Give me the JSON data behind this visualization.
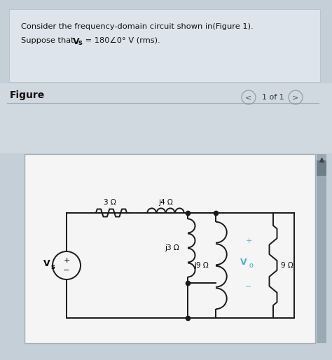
{
  "bg_color": "#c5cfd8",
  "panel_bg": "#d4dde5",
  "text_box_bg": "#dde4eb",
  "circuit_bg": "#f5f5f5",
  "figure_section_bg": "#d0d8e0",
  "title_line1": "Consider the frequency-domain circuit shown in(Figure 1).",
  "title_line2_pre": "Suppose that ",
  "title_Vs_bold": "V",
  "title_Vs_sub": "s",
  "title_line2_post": " = 180∠0° V (rms).",
  "figure_label": "Figure",
  "page_label": "1 of 1",
  "resistor_3": "3 Ω",
  "resistor_j4": "j4 Ω",
  "resistor_j3": "j3 Ω",
  "resistor_j9": "j9 Ω",
  "label_Vo_V": "V",
  "label_Vo_o": "o",
  "resistor_9": "9 Ω",
  "vs_label_V": "V",
  "vs_label_s": "s",
  "plus": "+",
  "minus": "−",
  "scrollbar_bg": "#9aaab5",
  "scrollbar_handle": "#6e7f8a",
  "node_color": "#1a1a1a",
  "wire_color": "#1a1a1a",
  "Vo_color": "#4ab0d4",
  "plus_color": "#4ab0d4",
  "minus_color": "#4ab0d4"
}
